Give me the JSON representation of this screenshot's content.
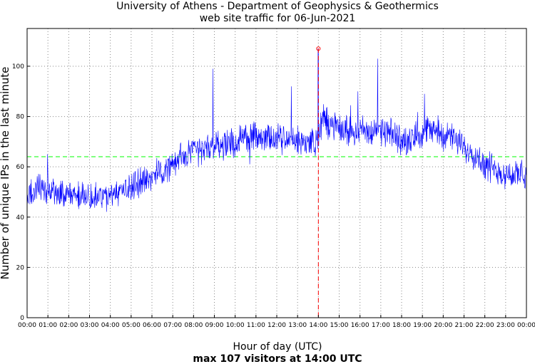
{
  "chart_data": {
    "type": "line",
    "title": "University of Athens - Department of Geophysics & Geothermics",
    "subtitle": "web site traffic for 06-Jun-2021",
    "xlabel": "Hour of day (UTC)",
    "caption": "max 107 visitors at 14:00 UTC",
    "ylabel": "Number of unique IPs in the last minute",
    "xlim": [
      0,
      24
    ],
    "ylim": [
      0,
      115
    ],
    "grid": true,
    "x_ticks": [
      "00:00",
      "01:00",
      "02:00",
      "03:00",
      "04:00",
      "05:00",
      "06:00",
      "07:00",
      "08:00",
      "09:00",
      "10:00",
      "11:00",
      "12:00",
      "13:00",
      "14:00",
      "15:00",
      "16:00",
      "17:00",
      "18:00",
      "19:00",
      "20:00",
      "21:00",
      "22:00",
      "23:00",
      "00:00"
    ],
    "y_ticks": [
      0,
      20,
      40,
      60,
      80,
      100
    ],
    "mean_value": 64,
    "max": {
      "hour": 14,
      "value": 107
    },
    "series": [
      {
        "name": "visitors",
        "trend_hours": [
          0,
          0.5,
          1,
          1.5,
          2,
          2.5,
          3,
          3.5,
          4,
          4.5,
          5,
          5.5,
          6,
          6.5,
          7,
          7.5,
          8,
          8.5,
          9,
          9.5,
          10,
          10.5,
          11,
          11.5,
          12,
          12.5,
          13,
          13.5,
          14,
          14.2,
          14.5,
          15,
          15.5,
          16,
          16.5,
          17,
          17.5,
          18,
          18.5,
          19,
          19.5,
          20,
          20.5,
          21,
          21.5,
          22,
          22.5,
          23,
          23.5,
          24
        ],
        "trend_values": [
          50,
          51,
          51,
          50,
          49,
          48,
          47,
          48,
          48,
          50,
          52,
          54,
          56,
          58,
          61,
          64,
          66,
          67,
          68,
          69,
          70,
          71,
          72,
          71,
          71,
          71,
          70,
          70,
          70,
          80,
          77,
          75,
          74,
          75,
          74,
          74,
          73,
          71,
          70,
          74,
          75,
          73,
          71,
          68,
          65,
          61,
          59,
          57,
          57,
          56
        ],
        "spikes": [
          {
            "hour": 8.93,
            "value": 99
          },
          {
            "hour": 13.98,
            "value": 107
          },
          {
            "hour": 16.85,
            "value": 103
          },
          {
            "hour": 12.7,
            "value": 92
          },
          {
            "hour": 19.1,
            "value": 89
          },
          {
            "hour": 0.98,
            "value": 65
          },
          {
            "hour": 15.9,
            "value": 90
          }
        ]
      }
    ]
  },
  "colors": {
    "series": "#0000ff",
    "mean_line": "#00ff00",
    "max_line": "#ff0000",
    "grid": "#888888",
    "axes": "#000000"
  }
}
